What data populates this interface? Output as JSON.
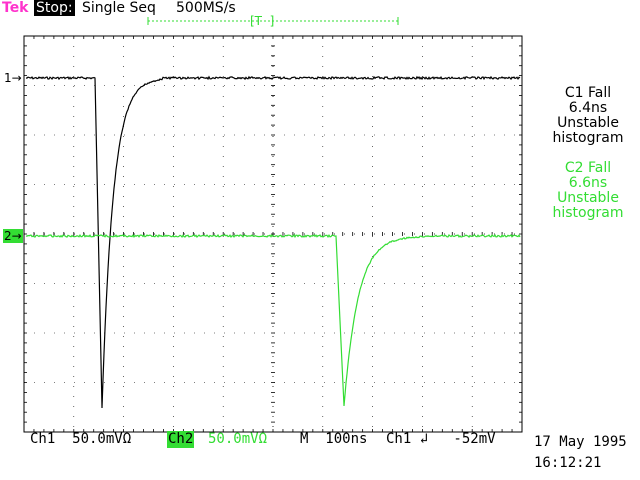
{
  "header": {
    "brand": "Tek",
    "state": "Stop:",
    "acquisition": "Single Seq",
    "sample_rate": "500MS/s"
  },
  "trigger_marker": "[T  ]",
  "markers": {
    "ch1": "1→",
    "ch2": "2→"
  },
  "measurements": {
    "c1": [
      "C1 Fall",
      "6.4ns",
      "Unstable",
      "histogram"
    ],
    "c2": [
      "C2 Fall",
      "6.6ns",
      "Unstable",
      "histogram"
    ]
  },
  "status": {
    "ch1_setting": "Ch1  50.0mVΩ",
    "ch2_label": "Ch2",
    "ch2_value": "50.0mVΩ",
    "timebase": "M  100ns",
    "trigger": "Ch1 ↲   -52mV"
  },
  "footer": {
    "date": "17 May 1995",
    "time": "16:12:21"
  },
  "colors": {
    "brand": "#ff33cc",
    "ch2": "#33dd33",
    "trace1": "#000000",
    "graticule": "#000000"
  }
}
